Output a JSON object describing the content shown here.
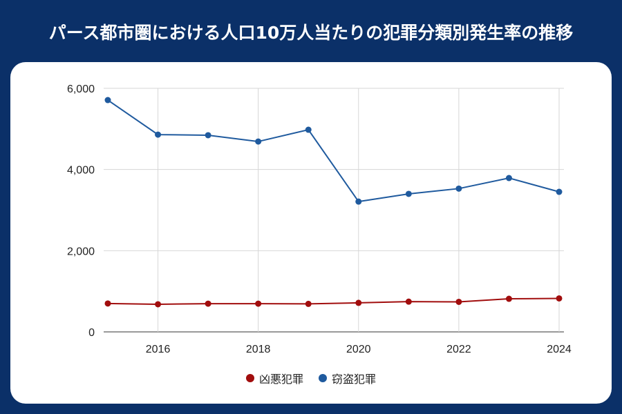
{
  "title": "パース都市圏における人口10万人当たりの犯罪分類別発生率の推移",
  "chart_data": {
    "type": "line",
    "title": "パース都市圏における人口10万人当たりの犯罪分類別発生率の推移",
    "x": [
      2015,
      2016,
      2017,
      2018,
      2019,
      2020,
      2021,
      2022,
      2023,
      2024
    ],
    "x_ticks": [
      "2016",
      "2018",
      "2020",
      "2022",
      "2024"
    ],
    "y_ticks": [
      "0",
      "2,000",
      "4,000",
      "6,000"
    ],
    "ylim": [
      0,
      6000
    ],
    "grid": true,
    "legend": "bottom",
    "series": [
      {
        "name": "凶悪犯罪",
        "color": "#a10d0d",
        "values": [
          700,
          680,
          695,
          695,
          690,
          715,
          745,
          740,
          815,
          825
        ]
      },
      {
        "name": "窃盗犯罪",
        "color": "#1f5a9e",
        "values": [
          5710,
          4860,
          4845,
          4690,
          4980,
          3210,
          3400,
          3530,
          3790,
          3450
        ]
      }
    ]
  },
  "colors": {
    "background": "#0b3068",
    "card": "#ffffff"
  }
}
